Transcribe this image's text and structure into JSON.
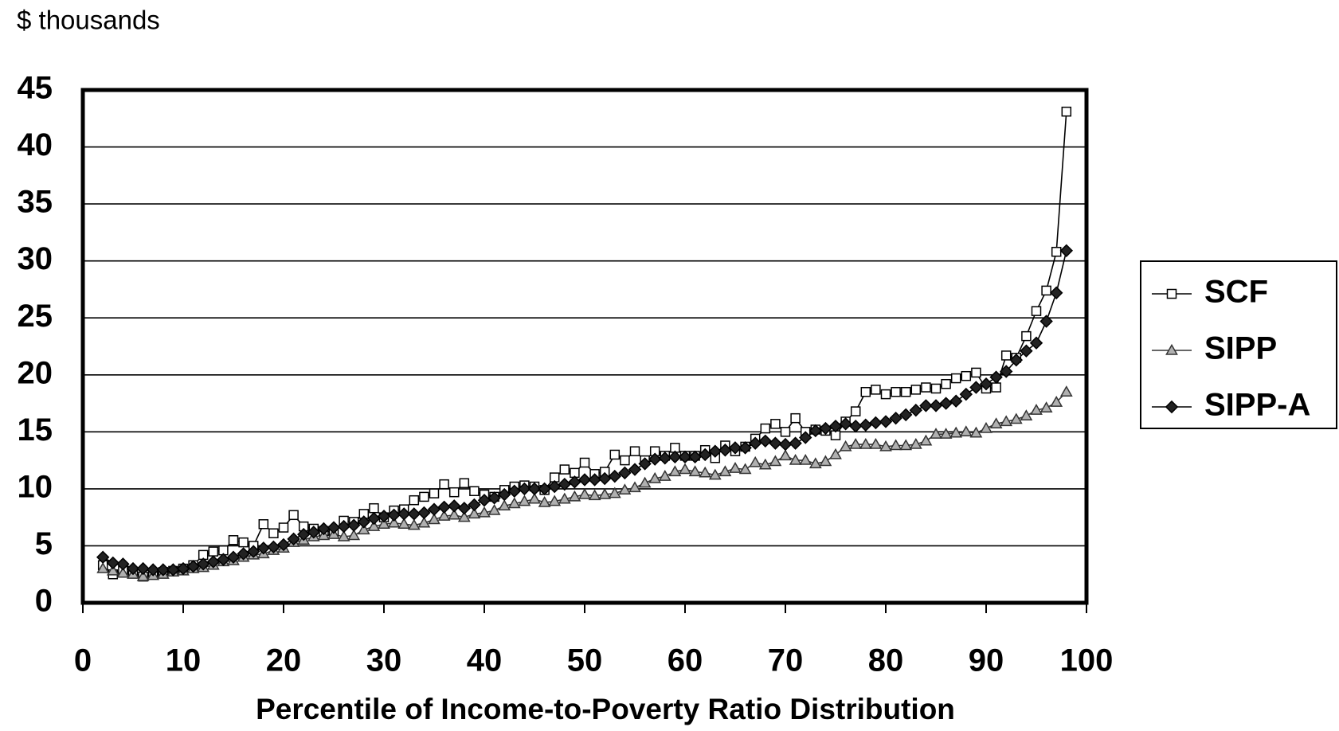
{
  "chart_data": {
    "type": "line",
    "y_unit_label": "$ thousands",
    "x_label": "Percentile of Income-to-Poverty Ratio Distribution",
    "x": [
      2,
      3,
      4,
      5,
      6,
      7,
      8,
      9,
      10,
      11,
      12,
      13,
      14,
      15,
      16,
      17,
      18,
      19,
      20,
      21,
      22,
      23,
      24,
      25,
      26,
      27,
      28,
      29,
      30,
      31,
      32,
      33,
      34,
      35,
      36,
      37,
      38,
      39,
      40,
      41,
      42,
      43,
      44,
      45,
      46,
      47,
      48,
      49,
      50,
      51,
      52,
      53,
      54,
      55,
      56,
      57,
      58,
      59,
      60,
      61,
      62,
      63,
      64,
      65,
      66,
      67,
      68,
      69,
      70,
      71,
      72,
      73,
      74,
      75,
      76,
      77,
      78,
      79,
      80,
      81,
      82,
      83,
      84,
      85,
      86,
      87,
      88,
      89,
      90,
      91,
      92,
      93,
      94,
      95,
      96,
      97,
      98
    ],
    "series": [
      {
        "name": "SCF",
        "color": "#000000",
        "marker": "square",
        "marker_fill": "#ffffff",
        "values": [
          3.3,
          2.5,
          2.8,
          2.6,
          2.3,
          2.5,
          2.7,
          2.8,
          3.0,
          3.3,
          4.2,
          4.5,
          4.6,
          5.5,
          5.3,
          5.0,
          6.9,
          6.1,
          6.6,
          7.7,
          6.7,
          6.5,
          6.3,
          6.2,
          7.2,
          7.1,
          7.8,
          8.3,
          7.5,
          8.1,
          8.2,
          9.0,
          9.3,
          9.6,
          10.4,
          9.7,
          10.5,
          9.8,
          9.5,
          9.3,
          9.9,
          10.2,
          10.3,
          10.2,
          9.9,
          11.0,
          11.7,
          11.4,
          12.3,
          11.3,
          11.5,
          13.0,
          12.5,
          13.3,
          12.5,
          13.3,
          12.9,
          13.6,
          12.9,
          12.9,
          13.4,
          12.7,
          13.8,
          13.3,
          13.7,
          14.4,
          15.3,
          15.7,
          15.0,
          16.2,
          15.0,
          15.2,
          15.1,
          14.7,
          15.9,
          16.8,
          18.5,
          18.7,
          18.3,
          18.5,
          18.5,
          18.7,
          18.9,
          18.8,
          19.2,
          19.7,
          19.9,
          20.2,
          18.8,
          18.9,
          21.7,
          21.5,
          23.4,
          25.6,
          27.4,
          30.8,
          43.1
        ]
      },
      {
        "name": "SIPP",
        "color": "#333333",
        "marker": "triangle",
        "marker_fill": "#b0b0b0",
        "values": [
          3.0,
          2.8,
          2.6,
          2.5,
          2.3,
          2.4,
          2.5,
          2.7,
          2.8,
          3.0,
          3.1,
          3.3,
          3.6,
          3.7,
          4.0,
          4.2,
          4.3,
          4.6,
          4.8,
          5.3,
          5.5,
          5.8,
          5.9,
          6.0,
          5.8,
          5.9,
          6.4,
          6.7,
          6.9,
          7.0,
          6.9,
          6.8,
          7.0,
          7.3,
          7.6,
          7.7,
          7.5,
          7.8,
          7.9,
          8.1,
          8.5,
          8.7,
          8.9,
          9.1,
          8.8,
          8.9,
          9.1,
          9.3,
          9.5,
          9.4,
          9.5,
          9.6,
          9.9,
          10.1,
          10.5,
          10.9,
          11.1,
          11.5,
          11.7,
          11.5,
          11.4,
          11.2,
          11.5,
          11.8,
          11.7,
          12.3,
          12.1,
          12.4,
          12.9,
          12.5,
          12.5,
          12.2,
          12.4,
          13.0,
          13.7,
          13.9,
          13.9,
          13.9,
          13.7,
          13.8,
          13.8,
          13.9,
          14.2,
          14.8,
          14.8,
          14.9,
          15.0,
          14.9,
          15.3,
          15.7,
          15.9,
          16.1,
          16.4,
          16.9,
          17.1,
          17.6,
          18.5
        ]
      },
      {
        "name": "SIPP-A",
        "color": "#000000",
        "marker": "diamond",
        "marker_fill": "#222222",
        "values": [
          4.0,
          3.5,
          3.4,
          3.0,
          3.0,
          2.9,
          2.9,
          2.9,
          3.0,
          3.2,
          3.4,
          3.6,
          3.8,
          4.0,
          4.3,
          4.5,
          4.8,
          4.9,
          5.1,
          5.6,
          6.0,
          6.2,
          6.5,
          6.6,
          6.7,
          6.8,
          7.1,
          7.4,
          7.6,
          7.7,
          7.8,
          7.8,
          7.9,
          8.2,
          8.4,
          8.5,
          8.3,
          8.6,
          9.0,
          9.2,
          9.5,
          9.8,
          10.0,
          10.0,
          10.0,
          10.2,
          10.4,
          10.6,
          10.8,
          10.8,
          10.9,
          11.1,
          11.4,
          11.7,
          12.2,
          12.6,
          12.7,
          12.8,
          12.8,
          12.8,
          13.0,
          13.3,
          13.4,
          13.6,
          13.6,
          14.0,
          14.2,
          14.0,
          13.9,
          14.0,
          14.5,
          15.1,
          15.3,
          15.5,
          15.7,
          15.5,
          15.6,
          15.8,
          15.9,
          16.2,
          16.5,
          16.9,
          17.3,
          17.3,
          17.5,
          17.7,
          18.3,
          18.9,
          19.2,
          19.8,
          20.3,
          21.3,
          22.1,
          22.8,
          24.7,
          27.2,
          30.9
        ]
      }
    ],
    "xlim": [
      0,
      100
    ],
    "xticks": [
      0,
      10,
      20,
      30,
      40,
      50,
      60,
      70,
      80,
      90,
      100
    ],
    "ylim": [
      0,
      45
    ],
    "yticks": [
      0,
      5,
      10,
      15,
      20,
      25,
      30,
      35,
      40,
      45
    ],
    "grid": true,
    "legend": "right"
  }
}
